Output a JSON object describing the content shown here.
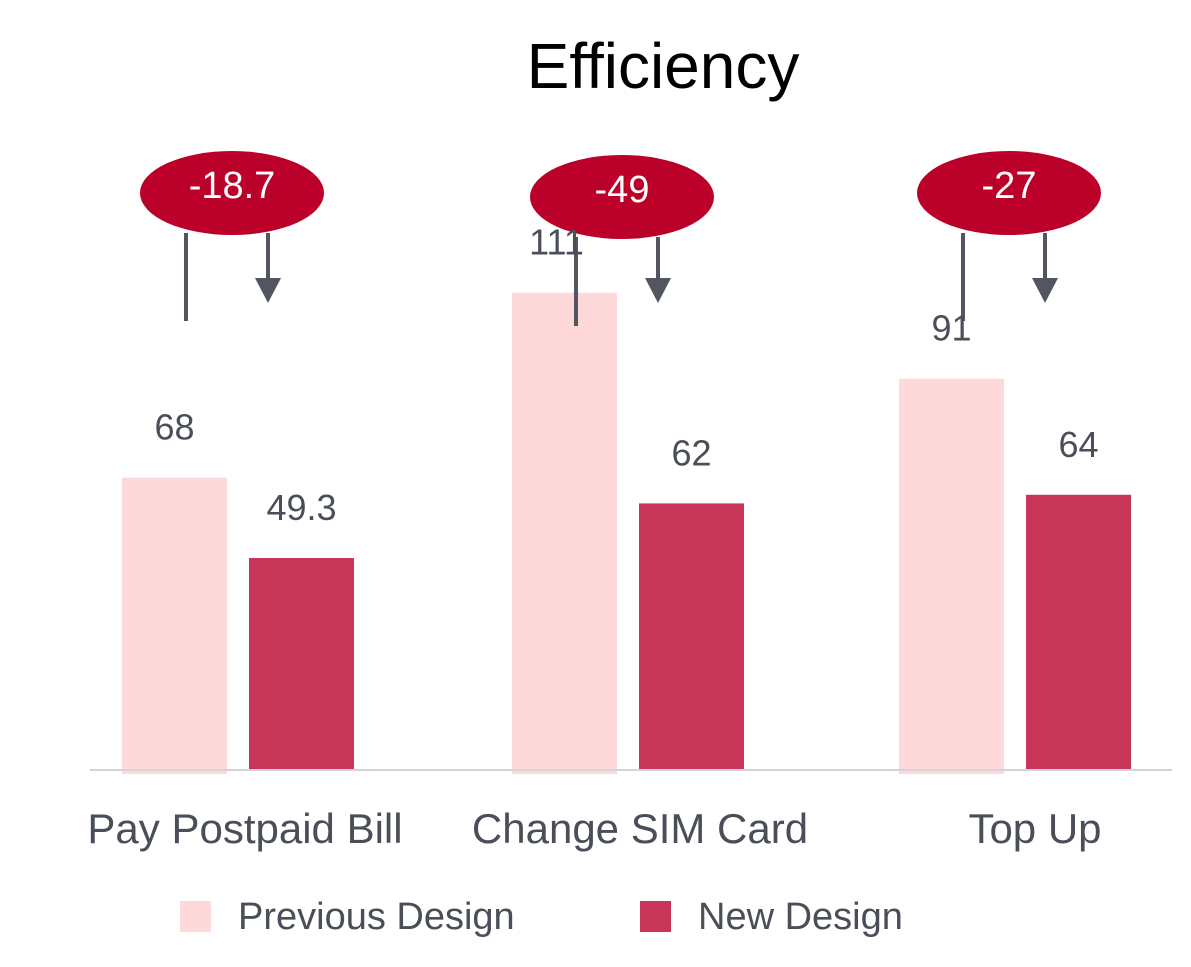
{
  "chart_data": {
    "type": "bar",
    "title": "Efficiency",
    "categories": [
      "Pay Postpaid Bill",
      "Change SIM Card",
      "Top Up"
    ],
    "series": [
      {
        "name": "Previous Design",
        "values": [
          68,
          111,
          91
        ],
        "value_labels": [
          "68",
          "111",
          "91"
        ],
        "color": "#fdd9da"
      },
      {
        "name": "New Design",
        "values": [
          49.3,
          62,
          64
        ],
        "value_labels": [
          "49.3",
          "62",
          "64"
        ],
        "color": "#c73659"
      }
    ],
    "annotations": [
      {
        "category": "Pay Postpaid Bill",
        "text": "-18.7"
      },
      {
        "category": "Change SIM Card",
        "text": "-49"
      },
      {
        "category": "Top Up",
        "text": "-27"
      }
    ],
    "annotation_color": "#bb0029",
    "arrow_color": "#52575f",
    "ylim": [
      0,
      125
    ],
    "grid": false,
    "legend_position": "bottom",
    "xlabel": "",
    "ylabel": ""
  }
}
